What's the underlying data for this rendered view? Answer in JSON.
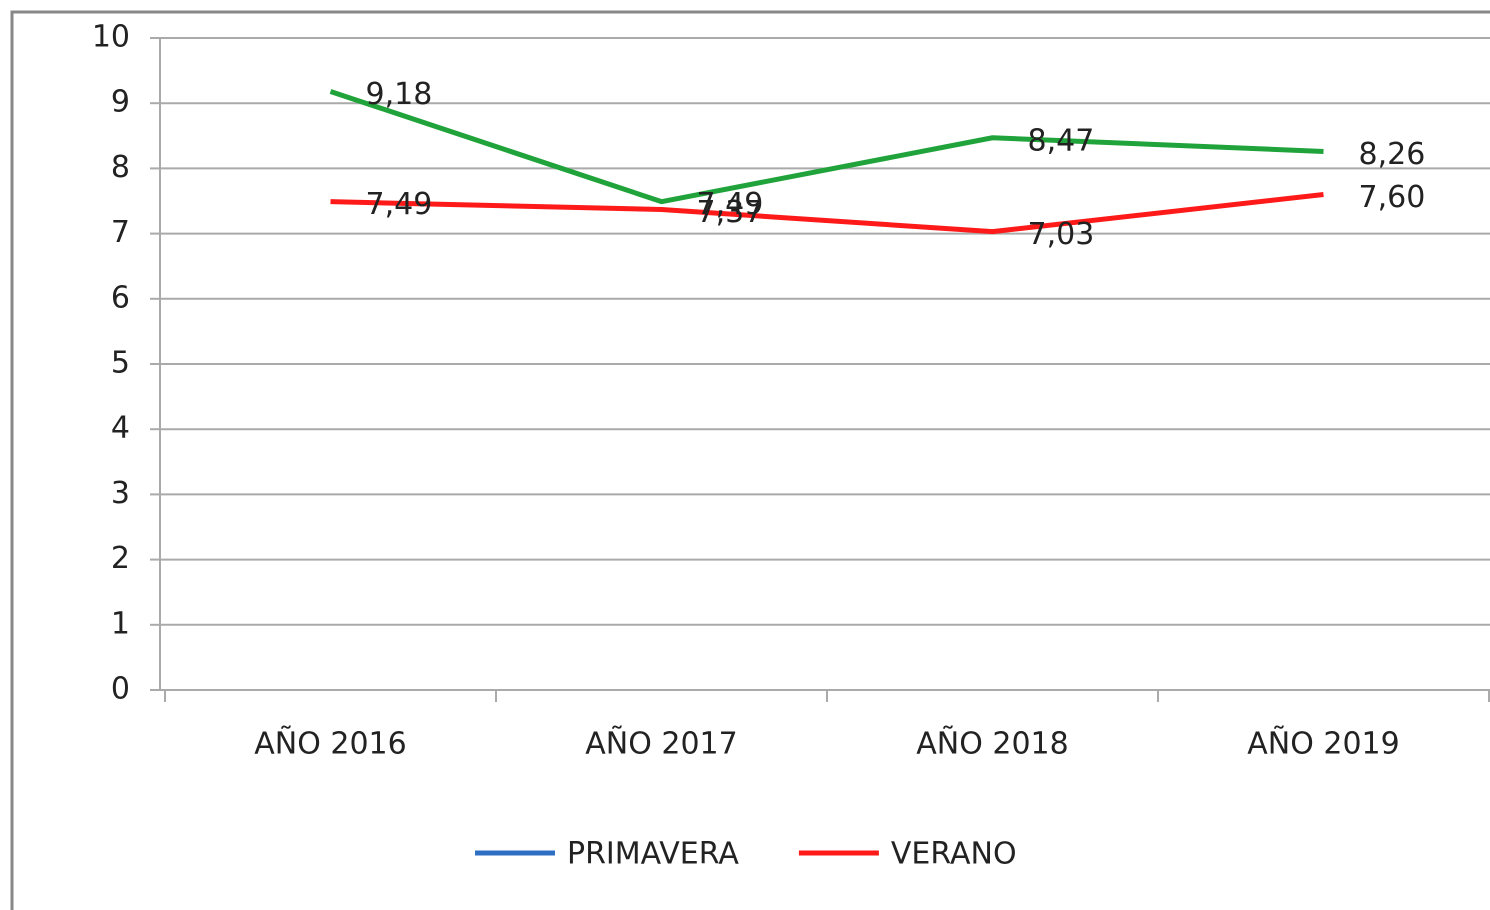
{
  "chart_data": {
    "type": "line",
    "categories": [
      "AÑO 2016",
      "AÑO 2017",
      "AÑO 2018",
      "AÑO 2019"
    ],
    "series": [
      {
        "name": "PRIMAVERA",
        "color": "#1fa33a",
        "legend_color": "#2e6fc4",
        "values": [
          9.18,
          7.49,
          8.47,
          8.26
        ],
        "value_labels": [
          "9,18",
          "7,49",
          "8,47",
          "8,26"
        ]
      },
      {
        "name": "VERANO",
        "color": "#ff1a1a",
        "legend_color": "#ff1a1a",
        "values": [
          7.49,
          7.37,
          7.03,
          7.6
        ],
        "value_labels": [
          "7,49",
          "7,37",
          "7,03",
          "7,60"
        ]
      }
    ],
    "ylim": [
      0,
      10
    ],
    "yticks": [
      0,
      1,
      2,
      3,
      4,
      5,
      6,
      7,
      8,
      9,
      10
    ],
    "grid": true,
    "legend": "bottom"
  }
}
